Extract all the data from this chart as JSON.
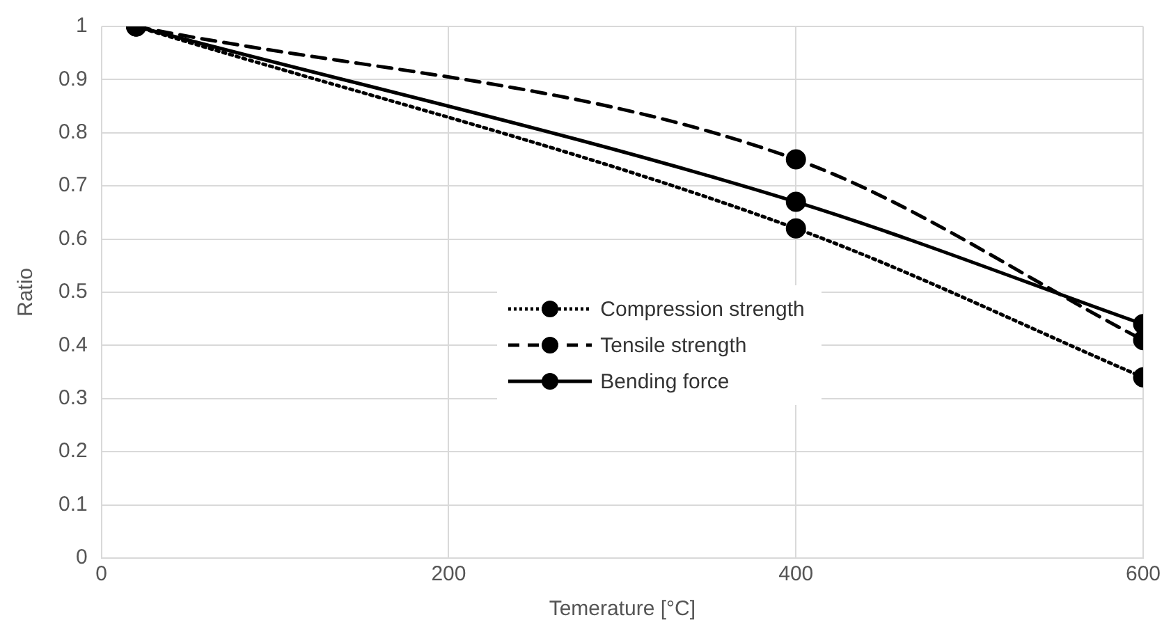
{
  "chart_data": {
    "type": "line",
    "xlabel": "Temerature [°C]",
    "ylabel": "Ratio",
    "x": [
      20,
      400,
      600
    ],
    "series": [
      {
        "name": "Compression strength",
        "color": "#000000",
        "line_style": "dotted",
        "values": [
          1,
          0.62,
          0.34
        ]
      },
      {
        "name": "Tensile strength",
        "color": "#000000",
        "line_style": "dashed",
        "values": [
          1,
          0.75,
          0.41
        ]
      },
      {
        "name": "Bending force",
        "color": "#000000",
        "line_style": "solid",
        "values": [
          1,
          0.67,
          0.44
        ]
      }
    ],
    "xlim": [
      0,
      600
    ],
    "xticks": [
      0,
      200,
      400,
      600
    ],
    "ylim": [
      0,
      1
    ],
    "yticks": [
      0,
      0.1,
      0.2,
      0.3,
      0.4,
      0.5,
      0.6,
      0.7,
      0.8,
      0.9,
      1
    ],
    "grid": true,
    "legend": "center right",
    "marker": "circle"
  }
}
